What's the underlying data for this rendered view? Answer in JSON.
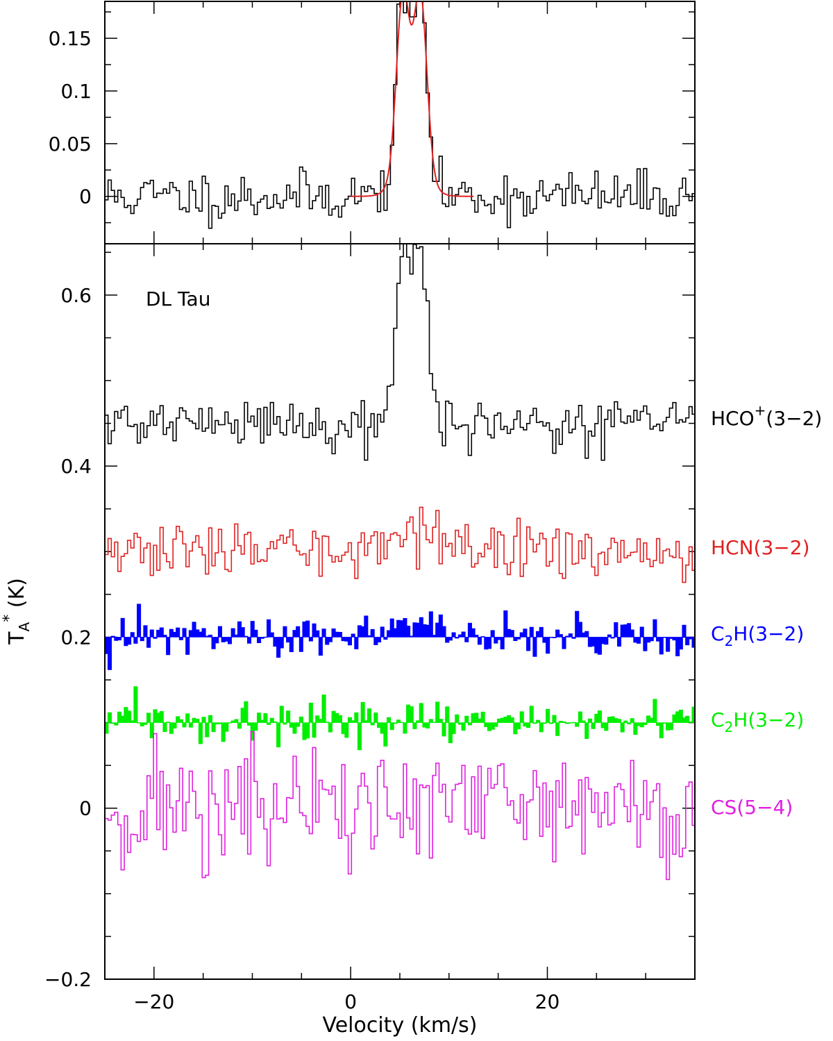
{
  "chart_data": [
    {
      "type": "line",
      "panel": "top",
      "xlim": [
        -25,
        35
      ],
      "ylim": [
        -0.045,
        0.185
      ],
      "x_ticks": [
        -20,
        0,
        20
      ],
      "y_ticks": [
        0,
        0.05,
        0.1,
        0.15
      ],
      "y_tick_labels": [
        "0",
        "0.05",
        "0.1",
        "0.15"
      ],
      "series": [
        {
          "style": "histogram",
          "color": "#000000",
          "fill": false,
          "baseline": 0,
          "seed": 11,
          "noise_rms": 0.012,
          "lines": [
            {
              "center": 5.3,
              "amp": 0.16,
              "sigma": 0.65
            },
            {
              "center": 7.1,
              "amp": 0.16,
              "sigma": 0.65
            },
            {
              "center": 6.2,
              "amp": 0.04,
              "sigma": 1.4
            }
          ]
        },
        {
          "style": "smooth",
          "color": "#e02020",
          "baseline": 0,
          "x_range": [
            0,
            12.5
          ],
          "lines": [
            {
              "center": 5.3,
              "amp": 0.16,
              "sigma": 0.65
            },
            {
              "center": 7.1,
              "amp": 0.16,
              "sigma": 0.65
            },
            {
              "center": 6.2,
              "amp": 0.04,
              "sigma": 1.4
            }
          ]
        }
      ]
    },
    {
      "type": "line",
      "panel": "bottom",
      "xlim": [
        -25,
        35
      ],
      "ylim": [
        -0.2,
        0.66
      ],
      "x_ticks": [
        -20,
        0,
        20
      ],
      "x_tick_labels": [
        "−20",
        "0",
        "20"
      ],
      "y_ticks": [
        -0.2,
        0,
        0.2,
        0.4,
        0.6
      ],
      "y_tick_labels": [
        "−0.2",
        "0",
        "0.2",
        "0.4",
        "0.6"
      ],
      "xlabel": "Velocity (km/s)",
      "ylabel": "T",
      "ylabel_sub": "A",
      "ylabel_sup": "*",
      "ylabel_unit": " (K)",
      "annotation": "DL Tau",
      "series": [
        {
          "label": "HCO",
          "label_sup": "+",
          "label_tail": "(3−2)",
          "style": "histogram",
          "color": "#000000",
          "fill": false,
          "baseline": 0.45,
          "seed": 21,
          "noise_rms": 0.014,
          "lines": [
            {
              "center": 5.3,
              "amp": 0.16,
              "sigma": 0.7
            },
            {
              "center": 7.1,
              "amp": 0.16,
              "sigma": 0.7
            },
            {
              "center": 6.2,
              "amp": 0.04,
              "sigma": 1.4
            }
          ]
        },
        {
          "label": "HCN(3−2)",
          "style": "histogram",
          "color": "#e02020",
          "fill": false,
          "baseline": 0.3,
          "seed": 33,
          "noise_rms": 0.015,
          "lines": [
            {
              "center": 6,
              "amp": 0.025,
              "sigma": 2.5
            }
          ]
        },
        {
          "label": "C",
          "label_sub": "2",
          "label_tail": "H(3−2)",
          "style": "histogram",
          "color": "#0000ff",
          "fill": true,
          "baseline": 0.2,
          "seed": 47,
          "noise_rms": 0.012,
          "lines": [
            {
              "center": 6.5,
              "amp": 0.012,
              "sigma": 3
            }
          ]
        },
        {
          "label": "C",
          "label_sub": "2",
          "label_tail": "H(3−2)",
          "style": "histogram",
          "color": "#00ee00",
          "fill": true,
          "baseline": 0.1,
          "seed": 59,
          "noise_rms": 0.011,
          "lines": []
        },
        {
          "label": "CS(5−4)",
          "style": "histogram",
          "color": "#e020e0",
          "fill": false,
          "baseline": 0,
          "seed": 71,
          "noise_rms": 0.038,
          "lines": []
        }
      ]
    }
  ]
}
